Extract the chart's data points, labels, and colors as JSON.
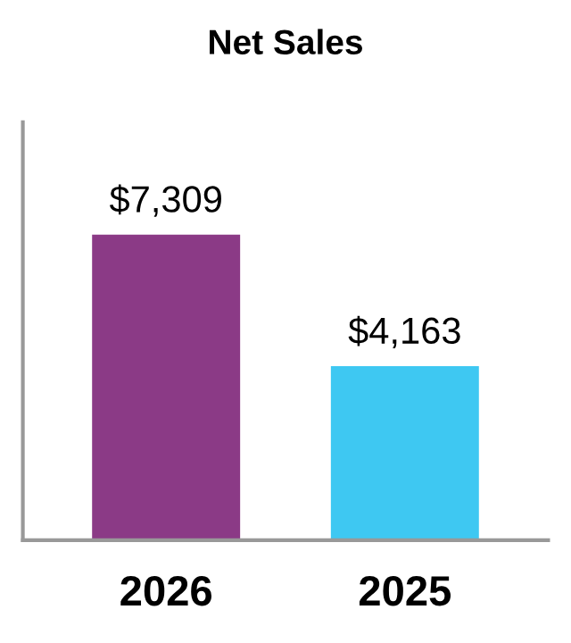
{
  "chart_data": {
    "type": "bar",
    "title": "Net Sales",
    "categories": [
      "2026",
      "2025"
    ],
    "values": [
      7309,
      4163
    ],
    "colors": [
      "#8b3a86",
      "#3ec8f2"
    ],
    "value_labels": [
      "$7,309",
      "$4,163"
    ],
    "ylim": [
      0,
      10000
    ],
    "grid": false,
    "legend": false
  }
}
